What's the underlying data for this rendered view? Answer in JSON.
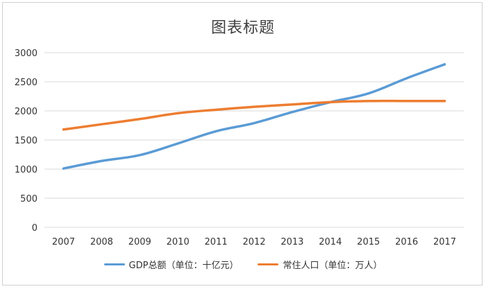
{
  "chart_data": {
    "type": "line",
    "title": "图表标题",
    "xlabel": "",
    "ylabel": "",
    "x": [
      "2007",
      "2008",
      "2009",
      "2010",
      "2011",
      "2012",
      "2013",
      "2014",
      "2015",
      "2016",
      "2017"
    ],
    "ylim": [
      0,
      3000
    ],
    "yticks": [
      0,
      500,
      1000,
      1500,
      2000,
      2500,
      3000
    ],
    "grid": "horizontal",
    "legend": "bottom",
    "series": [
      {
        "name": "GDP总额（单位：十亿元）",
        "color": "#5B9BD5",
        "values": [
          1010,
          1140,
          1240,
          1440,
          1650,
          1790,
          1980,
          2150,
          2300,
          2560,
          2800
        ]
      },
      {
        "name": "常住人口（单位：万人）",
        "color": "#ED7D31",
        "values": [
          1680,
          1770,
          1860,
          1960,
          2020,
          2070,
          2110,
          2150,
          2170,
          2170,
          2170
        ]
      }
    ]
  }
}
